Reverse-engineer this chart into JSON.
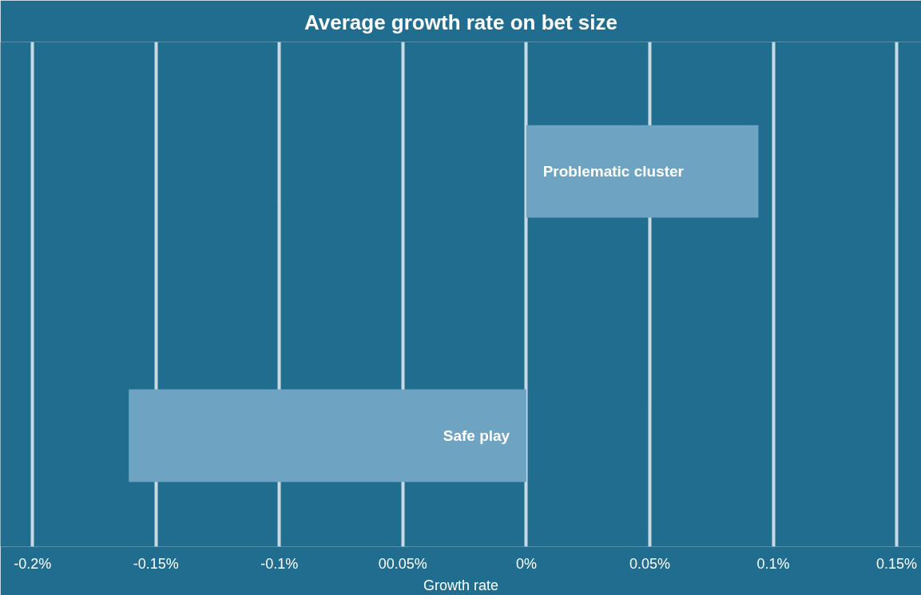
{
  "chart_data": {
    "type": "bar",
    "orientation": "horizontal",
    "title": "Average growth rate on bet size",
    "xlabel": "Growth rate",
    "categories": [
      "Problematic cluster",
      "Safe play"
    ],
    "values": [
      0.094,
      -0.161
    ],
    "color": "#6fa3c2",
    "xlim": [
      -0.213,
      0.16
    ],
    "xticks": [
      {
        "value": -0.2,
        "label": "-0.2%"
      },
      {
        "value": -0.15,
        "label": "-0.15%"
      },
      {
        "value": -0.1,
        "label": "-0.1%"
      },
      {
        "value": -0.05,
        "label": "00.05%"
      },
      {
        "value": 0,
        "label": "0%"
      },
      {
        "value": 0.05,
        "label": "0.05%"
      },
      {
        "value": 0.1,
        "label": "0.1%"
      },
      {
        "value": 0.15,
        "label": "0.15%"
      }
    ],
    "grid": "x",
    "tick_labels": "x"
  }
}
